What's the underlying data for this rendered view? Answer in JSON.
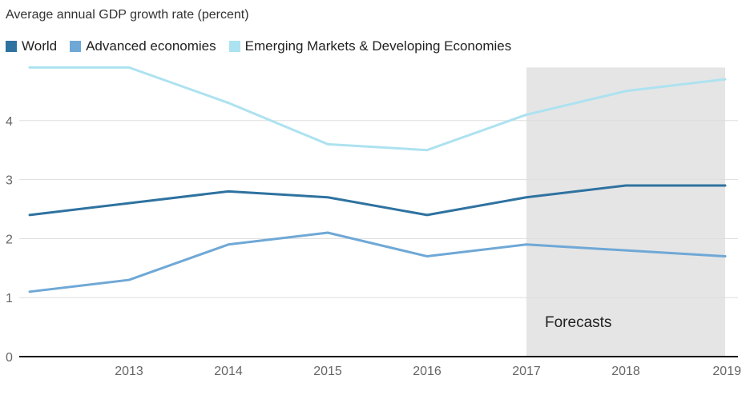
{
  "chart_data": {
    "type": "line",
    "title": "Average annual GDP growth rate (percent)",
    "x": [
      2012,
      2013,
      2014,
      2015,
      2016,
      2017,
      2018,
      2019
    ],
    "x_tick_labels": [
      "2013",
      "2014",
      "2015",
      "2016",
      "2017",
      "2018",
      "2019"
    ],
    "y_ticks": [
      0,
      1,
      2,
      3,
      4
    ],
    "ylim": [
      0,
      4.9
    ],
    "grid": true,
    "legend_position": "top-left",
    "forecast_region": {
      "x_start": 2017,
      "x_end": 2019,
      "label": "Forecasts",
      "color": "#e5e5e5"
    },
    "series": [
      {
        "name": "World",
        "color": "#2e72a0",
        "values": [
          2.4,
          2.6,
          2.8,
          2.7,
          2.4,
          2.7,
          2.9,
          2.9
        ]
      },
      {
        "name": "Advanced economies",
        "color": "#6fa8d6",
        "values": [
          1.1,
          1.3,
          1.9,
          2.1,
          1.7,
          1.9,
          1.8,
          1.7
        ]
      },
      {
        "name": "Emerging Markets & Developing Economies",
        "color": "#ade2f0",
        "values": [
          4.9,
          4.9,
          4.3,
          3.6,
          3.5,
          4.1,
          4.5,
          4.7
        ]
      }
    ]
  }
}
